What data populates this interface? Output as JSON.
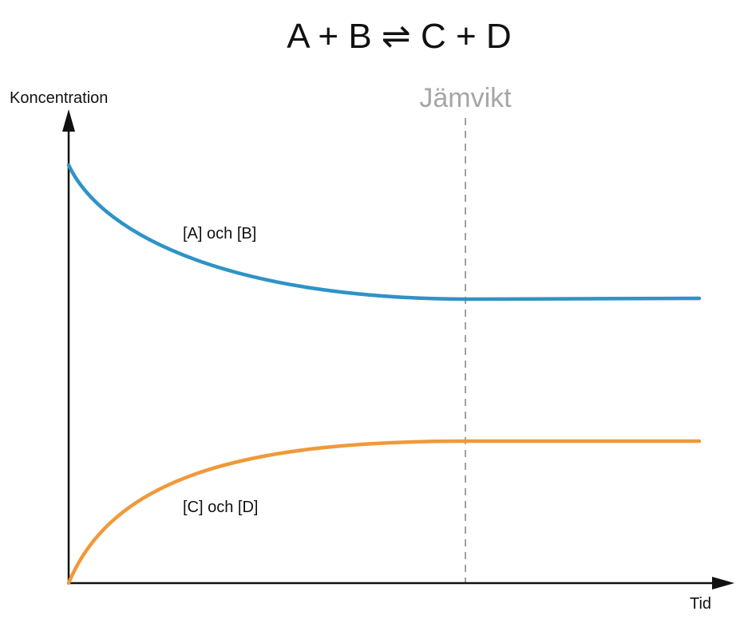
{
  "title": "A + B ⇌ C + D",
  "axes": {
    "y_label": "Koncentration",
    "x_label": "Tid"
  },
  "marker": {
    "label": "Jämvikt"
  },
  "curves": [
    {
      "label": "[A] och [B]"
    },
    {
      "label": "[C] och [D]"
    }
  ]
}
